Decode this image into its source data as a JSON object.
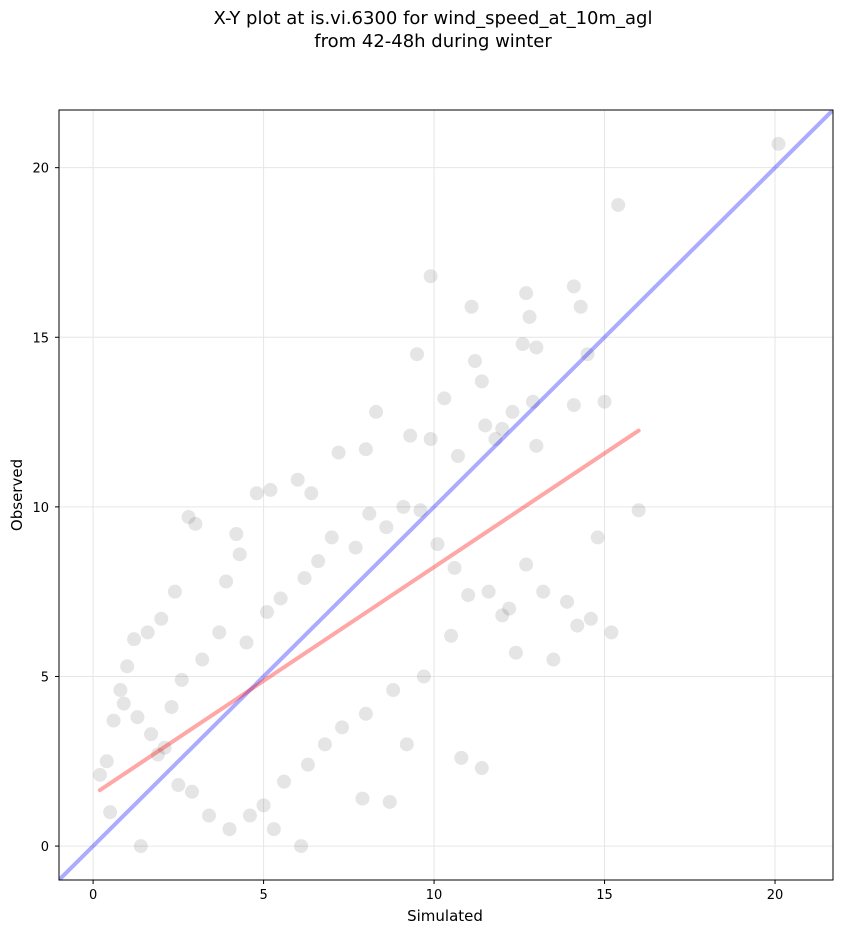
{
  "chart_data": {
    "type": "scatter",
    "title_lines": [
      "X-Y plot at is.vi.6300 for wind_speed_at_10m_agl",
      "from 42-48h during winter"
    ],
    "xlabel": "Simulated",
    "ylabel": "Observed",
    "xlim": [
      -1.0,
      21.7
    ],
    "ylim": [
      -1.0,
      21.7
    ],
    "xticks": [
      0,
      5,
      10,
      15,
      20
    ],
    "yticks": [
      0,
      5,
      10,
      15,
      20
    ],
    "grid": true,
    "legend": "none",
    "colors": {
      "points": "#000000",
      "identity_line": "#0000ff",
      "fit_line": "#ff0000"
    },
    "identity_line": {
      "x": [
        -1.0,
        21.7
      ],
      "y": [
        -1.0,
        21.7
      ]
    },
    "fit_line": {
      "x": [
        0.2,
        16.0
      ],
      "y": [
        1.65,
        12.25
      ]
    },
    "points": {
      "x": [
        20.1,
        12.7,
        15.4,
        9.9,
        11.1,
        12.8,
        14.1,
        14.3,
        13.0,
        11.2,
        12.6,
        11.4,
        12.0,
        12.3,
        11.8,
        13.0,
        12.9,
        14.5,
        14.1,
        15.0,
        14.8,
        9.5,
        10.3,
        9.9,
        10.7,
        11.5,
        9.3,
        8.3,
        8.0,
        7.2,
        6.4,
        6.0,
        5.2,
        4.8,
        4.3,
        4.2,
        3.9,
        3.0,
        2.8,
        2.4,
        2.0,
        1.6,
        1.2,
        1.0,
        0.8,
        0.6,
        0.4,
        0.2,
        0.5,
        1.4,
        1.9,
        2.3,
        2.6,
        3.2,
        3.7,
        4.5,
        5.1,
        5.5,
        6.2,
        6.6,
        7.0,
        7.7,
        8.1,
        8.6,
        9.1,
        9.6,
        10.1,
        10.6,
        11.0,
        11.6,
        12.2,
        12.7,
        13.2,
        13.9,
        14.6,
        15.2,
        16.0,
        12.0,
        10.5,
        9.7,
        8.8,
        8.0,
        7.3,
        6.8,
        6.3,
        5.6,
        5.0,
        4.6,
        4.0,
        3.4,
        2.9,
        2.5,
        2.1,
        1.7,
        1.3,
        0.9,
        10.8,
        11.4,
        12.4,
        13.5,
        14.2,
        7.9,
        8.7,
        9.2,
        6.1,
        5.3
      ],
      "y": [
        20.7,
        16.3,
        18.9,
        16.8,
        15.9,
        15.6,
        16.5,
        15.9,
        14.7,
        14.3,
        14.8,
        13.7,
        12.3,
        12.8,
        12.0,
        11.8,
        13.1,
        14.5,
        13.0,
        13.1,
        9.1,
        14.5,
        13.2,
        12.0,
        11.5,
        12.4,
        12.1,
        12.8,
        11.7,
        11.6,
        10.4,
        10.8,
        10.5,
        10.4,
        8.6,
        9.2,
        7.8,
        9.5,
        9.7,
        7.5,
        6.7,
        6.3,
        6.1,
        5.3,
        4.6,
        3.7,
        2.5,
        2.1,
        1.0,
        0.0,
        2.7,
        4.1,
        4.9,
        5.5,
        6.3,
        6.0,
        6.9,
        7.3,
        7.9,
        8.4,
        9.1,
        8.8,
        9.8,
        9.4,
        10.0,
        9.9,
        8.9,
        8.2,
        7.4,
        7.5,
        7.0,
        8.3,
        7.5,
        7.2,
        6.7,
        6.3,
        9.9,
        6.8,
        6.2,
        5.0,
        4.6,
        3.9,
        3.5,
        3.0,
        2.4,
        1.9,
        1.2,
        0.9,
        0.5,
        0.9,
        1.6,
        1.8,
        2.9,
        3.3,
        3.8,
        4.2,
        2.6,
        2.3,
        5.7,
        5.5,
        6.5,
        1.4,
        1.3,
        3.0,
        0.0,
        0.5
      ]
    }
  }
}
